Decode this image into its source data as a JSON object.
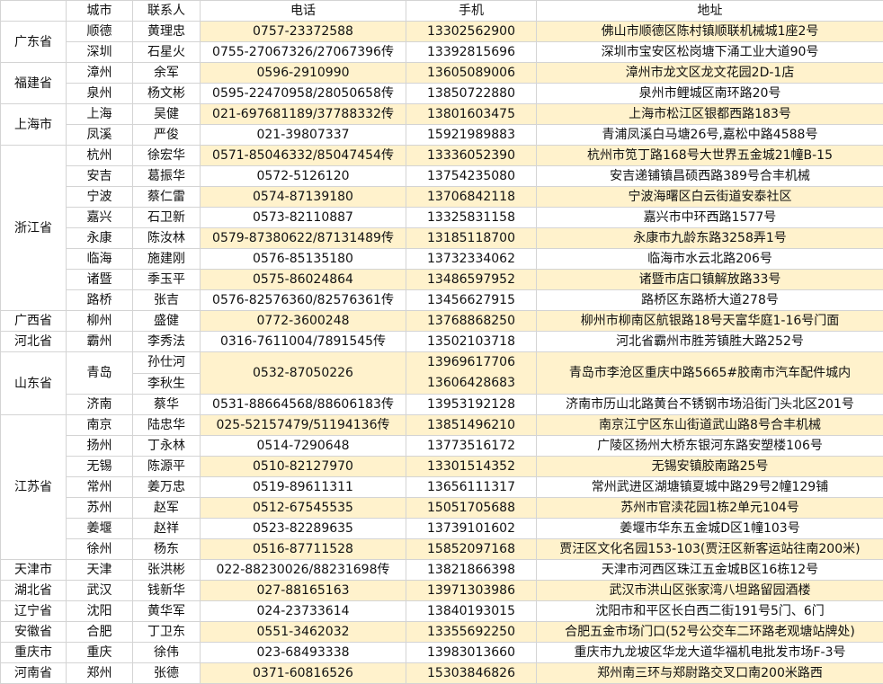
{
  "header": {
    "province": "",
    "city": "城市",
    "contact": "联系人",
    "phone": "电话",
    "mobile": "手机",
    "address": "地址"
  },
  "colors": {
    "highlight": "#fff2cc",
    "grid": "#d4d4d4"
  },
  "provinces": [
    {
      "name": "广东省",
      "cities": [
        {
          "city": "顺德",
          "contacts": [
            "黄理忠"
          ],
          "phone": "0757-23372588",
          "mobiles": [
            "13302562900"
          ],
          "address": "佛山市顺德区陈村镇顺联机械城1座2号",
          "highlighted": true
        },
        {
          "city": "深圳",
          "contacts": [
            "石星火"
          ],
          "phone": "0755-27067326/27067396传",
          "mobiles": [
            "13392815696"
          ],
          "address": "深圳市宝安区松岗塘下涌工业大道90号",
          "highlighted": false
        }
      ]
    },
    {
      "name": "福建省",
      "cities": [
        {
          "city": "漳州",
          "contacts": [
            "余军"
          ],
          "phone": "0596-2910990",
          "mobiles": [
            "13605089006"
          ],
          "address": "漳州市龙文区龙文花园2D-1店",
          "highlighted": true
        },
        {
          "city": "泉州",
          "contacts": [
            "杨文彬"
          ],
          "phone": "0595-22470958/28050658传",
          "mobiles": [
            "13850722880"
          ],
          "address": "泉州市鲤城区南环路20号",
          "highlighted": false
        }
      ]
    },
    {
      "name": "上海市",
      "cities": [
        {
          "city": "上海",
          "contacts": [
            "吴健"
          ],
          "phone": "021-697681189/37788332传",
          "mobiles": [
            "13801603475"
          ],
          "address": "上海市松江区银都西路183号",
          "highlighted": true
        },
        {
          "city": "凤溪",
          "contacts": [
            "严俊"
          ],
          "phone": "021-39807337",
          "mobiles": [
            "15921989883"
          ],
          "address": "青浦凤溪白马塘26号,嘉松中路4588号",
          "highlighted": false
        }
      ]
    },
    {
      "name": "浙江省",
      "cities": [
        {
          "city": "杭州",
          "contacts": [
            "徐宏华"
          ],
          "phone": "0571-85046332/85047454传",
          "mobiles": [
            "13336052390"
          ],
          "address": "杭州市笕丁路168号大世界五金城21幢B-15",
          "highlighted": true
        },
        {
          "city": "安吉",
          "contacts": [
            "葛振华"
          ],
          "phone": "0572-5126120",
          "mobiles": [
            "13754235080"
          ],
          "address": "安吉递铺镇昌硕西路389号合丰机械",
          "highlighted": false
        },
        {
          "city": "宁波",
          "contacts": [
            "蔡仁雷"
          ],
          "phone": "0574-87139180",
          "mobiles": [
            "13706842118"
          ],
          "address": "宁波海曙区白云街道安泰社区",
          "highlighted": true
        },
        {
          "city": "嘉兴",
          "contacts": [
            "石卫新"
          ],
          "phone": "0573-82110887",
          "mobiles": [
            "13325831158"
          ],
          "address": "嘉兴市中环西路1577号",
          "highlighted": false
        },
        {
          "city": "永康",
          "contacts": [
            "陈汝林"
          ],
          "phone": "0579-87380622/87131489传",
          "mobiles": [
            "13185118700"
          ],
          "address": "永康市九龄东路3258弄1号",
          "highlighted": true
        },
        {
          "city": "临海",
          "contacts": [
            "施建刚"
          ],
          "phone": "0576-85135180",
          "mobiles": [
            "13732334062"
          ],
          "address": "临海市水云北路206号",
          "highlighted": false
        },
        {
          "city": "诸暨",
          "contacts": [
            "季玉平"
          ],
          "phone": "0575-86024864",
          "mobiles": [
            "13486597952"
          ],
          "address": "诸暨市店口镇解放路33号",
          "highlighted": true
        },
        {
          "city": "路桥",
          "contacts": [
            "张吉"
          ],
          "phone": "0576-82576360/82576361传",
          "mobiles": [
            "13456627915"
          ],
          "address": "路桥区东路桥大道278号",
          "highlighted": false
        }
      ]
    },
    {
      "name": "广西省",
      "cities": [
        {
          "city": "柳州",
          "contacts": [
            "盛健"
          ],
          "phone": "0772-3600248",
          "mobiles": [
            "13768868250"
          ],
          "address": "柳州市柳南区航银路18号天富华庭1-16号门面",
          "highlighted": true
        }
      ]
    },
    {
      "name": "河北省",
      "cities": [
        {
          "city": "霸州",
          "contacts": [
            "李秀法"
          ],
          "phone": "0316-7611004/7891545传",
          "mobiles": [
            "13502103718"
          ],
          "address": "河北省霸州市胜芳镇胜大路252号",
          "highlighted": false
        }
      ]
    },
    {
      "name": "山东省",
      "cities": [
        {
          "city": "青岛",
          "contacts": [
            "孙仕河",
            "李秋生"
          ],
          "phone": "0532-87050226",
          "mobiles": [
            "13969617706",
            "13606428683"
          ],
          "address": "青岛市李沧区重庆中路5665#胶南市汽车配件城内",
          "highlighted": true
        },
        {
          "city": "济南",
          "contacts": [
            "蔡华"
          ],
          "phone": "0531-88664568/88606183传",
          "mobiles": [
            "13953192128"
          ],
          "address": "济南市历山北路黄台不锈钢市场沿街门头北区201号",
          "highlighted": false
        }
      ]
    },
    {
      "name": "江苏省",
      "cities": [
        {
          "city": "南京",
          "contacts": [
            "陆忠华"
          ],
          "phone": "025-52157479/51194136传",
          "mobiles": [
            "13851496210"
          ],
          "address": "南京江宁区东山街道武山路8号合丰机械",
          "highlighted": true
        },
        {
          "city": "扬州",
          "contacts": [
            "丁永林"
          ],
          "phone": "0514-7290648",
          "mobiles": [
            "13773516172"
          ],
          "address": "广陵区扬州大桥东银河东路安塑楼106号",
          "highlighted": false
        },
        {
          "city": "无锡",
          "contacts": [
            "陈源平"
          ],
          "phone": "0510-82127970",
          "mobiles": [
            "13301514352"
          ],
          "address": "无锡安镇胶南路25号",
          "highlighted": true
        },
        {
          "city": "常州",
          "contacts": [
            "姜万忠"
          ],
          "phone": "0519-89611311",
          "mobiles": [
            "13656111317"
          ],
          "address": "常州武进区湖塘镇夏城中路29号2幢129铺",
          "highlighted": false
        },
        {
          "city": "苏州",
          "contacts": [
            "赵军"
          ],
          "phone": "0512-67545535",
          "mobiles": [
            "15051705688"
          ],
          "address": "苏州市官渎花园1栋2单元104号",
          "highlighted": true
        },
        {
          "city": "姜堰",
          "contacts": [
            "赵祥"
          ],
          "phone": "0523-82289635",
          "mobiles": [
            "13739101602"
          ],
          "address": "姜堰市华东五金城D区1幢103号",
          "highlighted": false
        },
        {
          "city": "徐州",
          "contacts": [
            "杨东"
          ],
          "phone": "0516-87711528",
          "mobiles": [
            "15852097168"
          ],
          "address": "贾汪区文化名园153-103(贾汪区新客运站往南200米)",
          "highlighted": true
        }
      ]
    },
    {
      "name": "天津市",
      "cities": [
        {
          "city": "天津",
          "contacts": [
            "张洪彬"
          ],
          "phone": "022-88230026/88231698传",
          "mobiles": [
            "13821866398"
          ],
          "address": "天津市河西区珠江五金城B区16栋12号",
          "highlighted": false
        }
      ]
    },
    {
      "name": "湖北省",
      "cities": [
        {
          "city": "武汉",
          "contacts": [
            "钱新华"
          ],
          "phone": "027-88165163",
          "mobiles": [
            "13971303986"
          ],
          "address": "武汉市洪山区张家湾八坦路留园酒楼",
          "highlighted": true
        }
      ]
    },
    {
      "name": "辽宁省",
      "cities": [
        {
          "city": "沈阳",
          "contacts": [
            "黄华军"
          ],
          "phone": "024-23733614",
          "mobiles": [
            "13840193015"
          ],
          "address": "沈阳市和平区长白西二街191号5门、6门",
          "highlighted": false
        }
      ]
    },
    {
      "name": "安徽省",
      "cities": [
        {
          "city": "合肥",
          "contacts": [
            "丁卫东"
          ],
          "phone": "0551-3462032",
          "mobiles": [
            "13355692250"
          ],
          "address": "合肥五金市场门口(52号公交车二环路老观塘站牌处)",
          "highlighted": true
        }
      ]
    },
    {
      "name": "重庆市",
      "cities": [
        {
          "city": "重庆",
          "contacts": [
            "徐伟"
          ],
          "phone": "023-68493338",
          "mobiles": [
            "13983013660"
          ],
          "address": "重庆市九龙坡区华龙大道华福机电批发市场F-3号",
          "highlighted": false
        }
      ]
    },
    {
      "name": "河南省",
      "cities": [
        {
          "city": "郑州",
          "contacts": [
            "张德"
          ],
          "phone": "0371-60816526",
          "mobiles": [
            "15303846826"
          ],
          "address": "郑州南三环与郑尉路交叉口南200米路西",
          "highlighted": true
        }
      ]
    }
  ]
}
